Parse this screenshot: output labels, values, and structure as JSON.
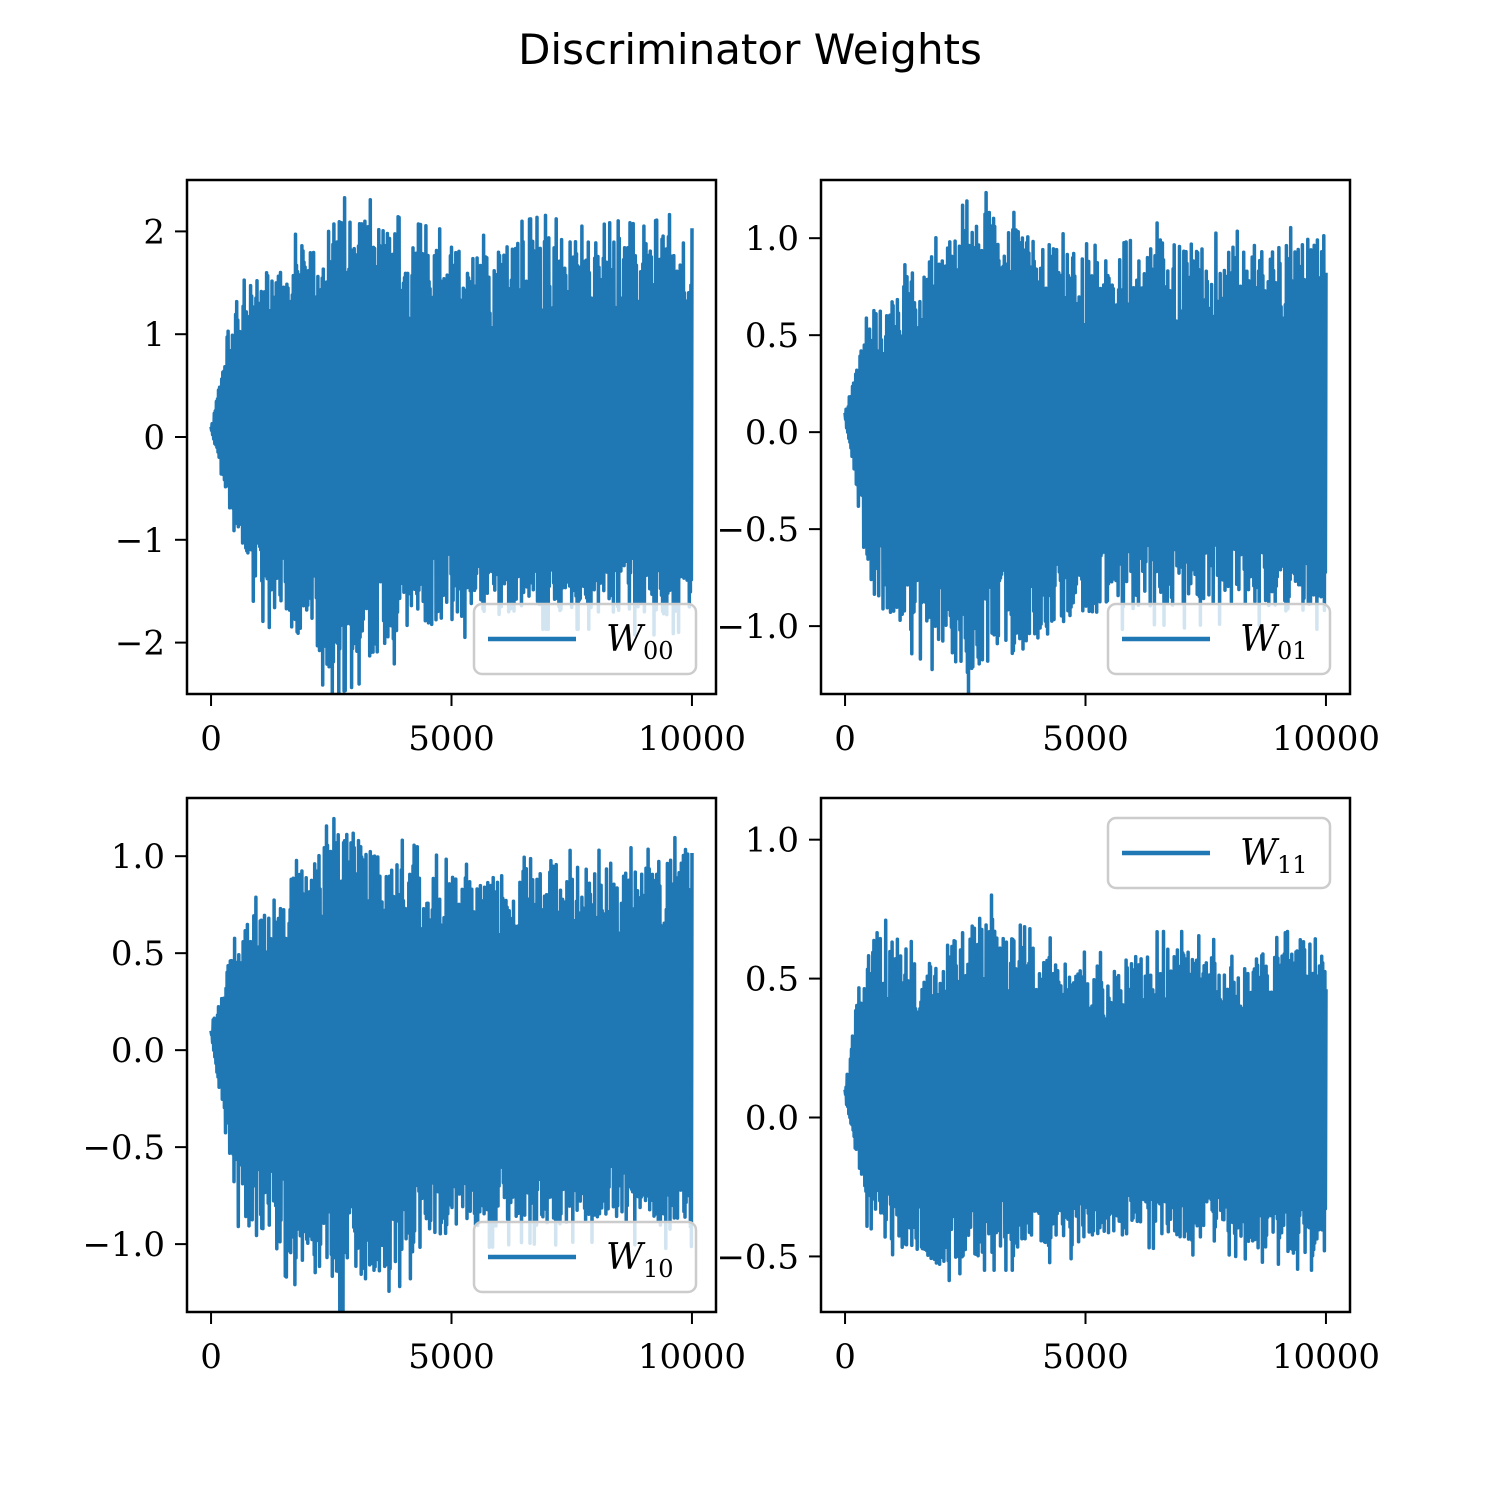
{
  "figure": {
    "title": "Discriminator Weights",
    "line_color": "#1f77b4"
  },
  "chart_data": [
    {
      "type": "line",
      "legend_main": "W",
      "legend_sub": "00",
      "legend_loc": "lower right",
      "xlim": [
        -500,
        10500
      ],
      "ylim": [
        -2.5,
        2.5
      ],
      "xticks": [
        0,
        5000,
        10000
      ],
      "xtick_labels": [
        "0",
        "5000",
        "10000"
      ],
      "yticks": [
        -2,
        -1,
        0,
        1,
        2
      ],
      "ytick_labels": [
        "−2",
        "−1",
        "0",
        "1",
        "2"
      ],
      "x": [
        0,
        500,
        1000,
        1500,
        2000,
        2500,
        3000,
        3500,
        4000,
        4500,
        5000,
        5500,
        6000,
        6500,
        7000,
        7500,
        8000,
        8500,
        9000,
        9500,
        10000
      ],
      "upper": [
        0.1,
        1.3,
        1.6,
        1.75,
        1.9,
        2.1,
        2.2,
        2.1,
        1.95,
        1.9,
        1.85,
        1.8,
        1.85,
        1.95,
        2.0,
        1.9,
        1.9,
        1.95,
        1.9,
        2.0,
        2.05
      ],
      "lower": [
        0.1,
        -1.0,
        -1.6,
        -1.8,
        -2.0,
        -2.3,
        -2.2,
        -2.1,
        -1.95,
        -1.85,
        -1.8,
        -1.75,
        -1.75,
        -1.7,
        -1.7,
        -1.7,
        -1.7,
        -1.75,
        -1.75,
        -1.75,
        -1.7
      ]
    },
    {
      "type": "line",
      "legend_main": "W",
      "legend_sub": "01",
      "legend_loc": "lower right",
      "xlim": [
        -500,
        10500
      ],
      "ylim": [
        -1.35,
        1.3
      ],
      "xticks": [
        0,
        5000,
        10000
      ],
      "xtick_labels": [
        "0",
        "5000",
        "10000"
      ],
      "yticks": [
        -1.0,
        -0.5,
        0.0,
        0.5,
        1.0
      ],
      "ytick_labels": [
        "−1.0",
        "−0.5",
        "0.0",
        "0.5",
        "1.0"
      ],
      "x": [
        0,
        500,
        1000,
        1500,
        2000,
        2500,
        3000,
        3500,
        4000,
        4500,
        5000,
        5500,
        6000,
        6500,
        7000,
        7500,
        8000,
        8500,
        9000,
        9500,
        10000
      ],
      "upper": [
        0.1,
        0.6,
        0.75,
        0.85,
        0.95,
        1.1,
        1.15,
        1.05,
        1.0,
        0.95,
        0.9,
        0.88,
        0.92,
        1.0,
        1.0,
        0.95,
        0.95,
        0.98,
        0.95,
        1.0,
        1.05
      ],
      "lower": [
        0.1,
        -0.8,
        -1.0,
        -1.05,
        -1.15,
        -1.25,
        -1.2,
        -1.15,
        -1.1,
        -1.0,
        -0.95,
        -0.93,
        -0.92,
        -0.9,
        -0.92,
        -0.9,
        -0.9,
        -0.9,
        -0.92,
        -0.93,
        -0.92
      ]
    },
    {
      "type": "line",
      "legend_main": "W",
      "legend_sub": "10",
      "legend_loc": "lower right",
      "xlim": [
        -500,
        10500
      ],
      "ylim": [
        -1.35,
        1.3
      ],
      "xticks": [
        0,
        5000,
        10000
      ],
      "xtick_labels": [
        "0",
        "5000",
        "10000"
      ],
      "yticks": [
        -1.0,
        -0.5,
        0.0,
        0.5,
        1.0
      ],
      "ytick_labels": [
        "−1.0",
        "−0.5",
        "0.0",
        "0.5",
        "1.0"
      ],
      "x": [
        0,
        500,
        1000,
        1500,
        2000,
        2500,
        3000,
        3500,
        4000,
        4500,
        5000,
        5500,
        6000,
        6500,
        7000,
        7500,
        8000,
        8500,
        9000,
        9500,
        10000
      ],
      "upper": [
        0.1,
        0.6,
        0.75,
        0.85,
        0.95,
        1.1,
        1.15,
        1.05,
        1.0,
        0.95,
        0.9,
        0.88,
        0.92,
        1.0,
        1.0,
        0.95,
        0.95,
        0.98,
        0.95,
        1.0,
        1.05
      ],
      "lower": [
        0.1,
        -0.8,
        -1.0,
        -1.05,
        -1.15,
        -1.25,
        -1.2,
        -1.15,
        -1.1,
        -1.0,
        -0.95,
        -0.93,
        -0.92,
        -0.9,
        -0.92,
        -0.9,
        -0.9,
        -0.9,
        -0.92,
        -0.93,
        -0.92
      ]
    },
    {
      "type": "line",
      "legend_main": "W",
      "legend_sub": "11",
      "legend_loc": "upper right",
      "xlim": [
        -500,
        10500
      ],
      "ylim": [
        -0.7,
        1.15
      ],
      "xticks": [
        0,
        5000,
        10000
      ],
      "xtick_labels": [
        "0",
        "5000",
        "10000"
      ],
      "yticks": [
        -0.5,
        0.0,
        0.5,
        1.0
      ],
      "ytick_labels": [
        "−0.5",
        "0.0",
        "0.5",
        "1.0"
      ],
      "x": [
        0,
        500,
        1000,
        1500,
        2000,
        2500,
        3000,
        3500,
        4000,
        4500,
        5000,
        5500,
        6000,
        6500,
        7000,
        7500,
        8000,
        8500,
        9000,
        9500,
        10000
      ],
      "upper": [
        0.1,
        0.75,
        0.7,
        0.55,
        0.6,
        0.7,
        0.75,
        0.65,
        0.62,
        0.58,
        0.55,
        0.55,
        0.58,
        0.62,
        0.62,
        0.6,
        0.58,
        0.6,
        0.6,
        0.65,
        0.65
      ],
      "lower": [
        0.1,
        -0.4,
        -0.45,
        -0.5,
        -0.55,
        -0.5,
        -0.5,
        -0.5,
        -0.48,
        -0.47,
        -0.45,
        -0.43,
        -0.42,
        -0.43,
        -0.45,
        -0.45,
        -0.45,
        -0.47,
        -0.48,
        -0.5,
        -0.5
      ]
    }
  ]
}
